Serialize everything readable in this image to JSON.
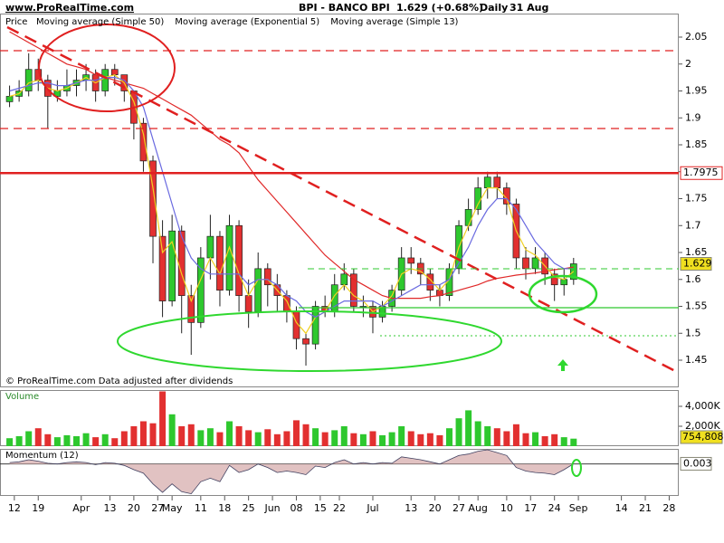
{
  "header": {
    "site": "www.ProRealTime.com",
    "instrument": "BPI - BANCO BPI",
    "quote": "1.629 (+0.68%)",
    "period": "Daily",
    "date": "31 Aug"
  },
  "chart_data": [
    {
      "type": "candlestick",
      "title": "Price",
      "note": "© ProRealTime.com  Data adjusted after dividends",
      "x": [
        -1,
        1,
        3,
        5,
        7,
        9,
        11,
        13,
        15,
        17,
        19,
        21,
        23,
        25,
        27,
        29,
        31,
        33,
        35,
        37,
        39,
        41,
        43,
        45,
        47,
        49,
        51,
        53,
        55,
        57,
        59,
        61,
        63,
        65,
        67,
        69,
        71,
        73,
        75,
        77,
        79,
        81,
        83,
        85,
        87,
        89,
        91,
        93,
        95,
        97,
        99,
        101,
        103,
        105,
        107,
        109,
        111,
        113,
        115,
        117
      ],
      "open": [
        1.93,
        1.94,
        1.95,
        1.99,
        1.97,
        1.94,
        1.95,
        1.96,
        1.97,
        1.98,
        1.95,
        1.99,
        1.98,
        1.95,
        1.89,
        1.82,
        1.68,
        1.56,
        1.69,
        1.57,
        1.52,
        1.64,
        1.68,
        1.58,
        1.7,
        1.57,
        1.54,
        1.62,
        1.59,
        1.57,
        1.54,
        1.49,
        1.48,
        1.55,
        1.54,
        1.59,
        1.61,
        1.55,
        1.55,
        1.53,
        1.55,
        1.58,
        1.64,
        1.63,
        1.61,
        1.58,
        1.57,
        1.62,
        1.7,
        1.73,
        1.77,
        1.79,
        1.77,
        1.74,
        1.64,
        1.62,
        1.64,
        1.61,
        1.59,
        1.6
      ],
      "high": [
        1.96,
        1.97,
        2.02,
        2.01,
        1.98,
        1.97,
        1.99,
        1.99,
        2.0,
        1.99,
        2.0,
        2.0,
        1.98,
        1.95,
        1.9,
        1.83,
        1.71,
        1.72,
        1.7,
        1.59,
        1.66,
        1.72,
        1.69,
        1.72,
        1.71,
        1.6,
        1.65,
        1.63,
        1.61,
        1.58,
        1.55,
        1.5,
        1.56,
        1.57,
        1.61,
        1.63,
        1.62,
        1.57,
        1.56,
        1.56,
        1.59,
        1.66,
        1.66,
        1.64,
        1.62,
        1.59,
        1.63,
        1.71,
        1.75,
        1.79,
        1.8,
        1.8,
        1.78,
        1.75,
        1.66,
        1.66,
        1.65,
        1.62,
        1.62,
        1.64
      ],
      "low": [
        1.92,
        1.93,
        1.94,
        1.95,
        1.88,
        1.93,
        1.94,
        1.94,
        1.95,
        1.93,
        1.94,
        1.96,
        1.93,
        1.86,
        1.8,
        1.63,
        1.53,
        1.55,
        1.5,
        1.46,
        1.51,
        1.6,
        1.55,
        1.57,
        1.54,
        1.51,
        1.53,
        1.55,
        1.54,
        1.52,
        1.47,
        1.44,
        1.47,
        1.53,
        1.53,
        1.58,
        1.54,
        1.53,
        1.5,
        1.52,
        1.54,
        1.57,
        1.61,
        1.59,
        1.56,
        1.55,
        1.56,
        1.61,
        1.69,
        1.72,
        1.75,
        1.75,
        1.72,
        1.62,
        1.6,
        1.61,
        1.59,
        1.56,
        1.57,
        1.59
      ],
      "close": [
        1.94,
        1.95,
        1.99,
        1.97,
        1.94,
        1.95,
        1.96,
        1.97,
        1.98,
        1.95,
        1.99,
        1.98,
        1.95,
        1.89,
        1.82,
        1.68,
        1.56,
        1.69,
        1.57,
        1.52,
        1.64,
        1.68,
        1.58,
        1.7,
        1.57,
        1.54,
        1.62,
        1.59,
        1.57,
        1.54,
        1.49,
        1.48,
        1.55,
        1.54,
        1.59,
        1.61,
        1.55,
        1.55,
        1.53,
        1.55,
        1.58,
        1.64,
        1.63,
        1.61,
        1.58,
        1.57,
        1.62,
        1.7,
        1.73,
        1.77,
        1.79,
        1.77,
        1.74,
        1.64,
        1.62,
        1.64,
        1.61,
        1.59,
        1.6,
        1.629
      ],
      "up_color": "#2ec82e",
      "down_color": "#e23030",
      "series": [
        {
          "name": "Moving average (Simple 50)",
          "color": "#e02828",
          "values": [
            2.06,
            2.05,
            2.04,
            2.03,
            2.02,
            2.01,
            2.0,
            1.995,
            1.99,
            1.98,
            1.975,
            1.97,
            1.965,
            1.96,
            1.955,
            1.945,
            1.935,
            1.925,
            1.915,
            1.905,
            1.89,
            1.875,
            1.86,
            1.85,
            1.835,
            1.81,
            1.785,
            1.765,
            1.745,
            1.725,
            1.705,
            1.685,
            1.665,
            1.645,
            1.63,
            1.615,
            1.6,
            1.59,
            1.58,
            1.57,
            1.565,
            1.565,
            1.565,
            1.565,
            1.568,
            1.57,
            1.575,
            1.58,
            1.585,
            1.59,
            1.597,
            1.602,
            1.605,
            1.608,
            1.61,
            1.612,
            1.615,
            1.618,
            1.62,
            1.623
          ]
        },
        {
          "name": "Moving average (Exponential 5)",
          "color": "#f0d020",
          "values": [
            1.94,
            1.945,
            1.965,
            1.97,
            1.955,
            1.95,
            1.955,
            1.965,
            1.975,
            1.965,
            1.975,
            1.98,
            1.965,
            1.93,
            1.87,
            1.77,
            1.65,
            1.67,
            1.61,
            1.56,
            1.6,
            1.64,
            1.61,
            1.66,
            1.61,
            1.57,
            1.6,
            1.6,
            1.58,
            1.56,
            1.52,
            1.5,
            1.53,
            1.54,
            1.57,
            1.59,
            1.57,
            1.56,
            1.54,
            1.55,
            1.57,
            1.61,
            1.62,
            1.615,
            1.6,
            1.58,
            1.6,
            1.66,
            1.7,
            1.74,
            1.77,
            1.77,
            1.75,
            1.69,
            1.655,
            1.645,
            1.625,
            1.605,
            1.6,
            1.615
          ]
        },
        {
          "name": "Moving average (Simple 13)",
          "color": "#6a6ae0",
          "values": [
            1.95,
            1.955,
            1.96,
            1.965,
            1.965,
            1.96,
            1.96,
            1.965,
            1.97,
            1.97,
            1.975,
            1.975,
            1.97,
            1.95,
            1.92,
            1.86,
            1.8,
            1.74,
            1.68,
            1.64,
            1.62,
            1.61,
            1.61,
            1.61,
            1.61,
            1.59,
            1.6,
            1.6,
            1.59,
            1.57,
            1.56,
            1.54,
            1.53,
            1.54,
            1.55,
            1.56,
            1.56,
            1.56,
            1.56,
            1.55,
            1.56,
            1.57,
            1.58,
            1.59,
            1.59,
            1.59,
            1.6,
            1.63,
            1.66,
            1.7,
            1.73,
            1.75,
            1.75,
            1.73,
            1.7,
            1.67,
            1.65,
            1.63,
            1.62,
            1.62
          ]
        }
      ],
      "hlines": [
        {
          "value": 1.7975,
          "label": "1.7975",
          "color": "#e02020"
        }
      ],
      "xlim": [
        -3,
        139
      ],
      "xticks": [
        {
          "value": 0,
          "label": "12"
        },
        {
          "value": 5,
          "label": "19"
        },
        {
          "value": 14,
          "label": "Apr"
        },
        {
          "value": 20,
          "label": "13"
        },
        {
          "value": 25,
          "label": "20"
        },
        {
          "value": 30,
          "label": "27"
        },
        {
          "value": 33,
          "label": "May"
        },
        {
          "value": 39,
          "label": "11"
        },
        {
          "value": 44,
          "label": "18"
        },
        {
          "value": 49,
          "label": "25"
        },
        {
          "value": 54,
          "label": "Jun"
        },
        {
          "value": 59,
          "label": "08"
        },
        {
          "value": 64,
          "label": "15"
        },
        {
          "value": 68,
          "label": "22"
        },
        {
          "value": 75,
          "label": "Jul"
        },
        {
          "value": 83,
          "label": "13"
        },
        {
          "value": 88,
          "label": "20"
        },
        {
          "value": 93,
          "label": "27"
        },
        {
          "value": 97,
          "label": "Aug"
        },
        {
          "value": 103,
          "label": "10"
        },
        {
          "value": 108,
          "label": "17"
        },
        {
          "value": 113,
          "label": "24"
        },
        {
          "value": 118,
          "label": "Sep"
        },
        {
          "value": 127,
          "label": "14"
        },
        {
          "value": 132,
          "label": "21"
        },
        {
          "value": 137,
          "label": "28"
        }
      ],
      "ylim": [
        1.3996,
        2.0937
      ],
      "yticks": [
        1.45,
        1.5,
        1.55,
        1.6,
        1.65,
        1.7,
        1.75,
        1.8,
        1.85,
        1.9,
        1.95,
        2,
        2.05
      ],
      "grid": false
    },
    {
      "type": "bar",
      "title": "Volume",
      "values": [
        800000,
        1000000,
        1500000,
        1800000,
        1200000,
        900000,
        1100000,
        1000000,
        1300000,
        900000,
        1200000,
        800000,
        1500000,
        2000000,
        2500000,
        2300000,
        5500000,
        3200000,
        2000000,
        2200000,
        1600000,
        1800000,
        1400000,
        2500000,
        2000000,
        1600000,
        1400000,
        1700000,
        1200000,
        1500000,
        2600000,
        2200000,
        1800000,
        1400000,
        1600000,
        2000000,
        1300000,
        1200000,
        1500000,
        1100000,
        1400000,
        2000000,
        1500000,
        1200000,
        1300000,
        1100000,
        1800000,
        2800000,
        3600000,
        2500000,
        2000000,
        1800000,
        1500000,
        2200000,
        1300000,
        1400000,
        1000000,
        1200000,
        900000,
        754808
      ],
      "last_value_label": "754,808",
      "ylim": [
        0,
        5545000
      ],
      "yticks": [
        {
          "value": 2000000,
          "label": "2,000K"
        },
        {
          "value": 4000000,
          "label": "4,000K"
        }
      ]
    },
    {
      "type": "area",
      "title": "Momentum (12)",
      "color": "#d9b3b3",
      "line_color": "#404060",
      "values": [
        0.02,
        0.03,
        0.06,
        0.04,
        0.01,
        0.0,
        0.02,
        0.03,
        0.02,
        -0.01,
        0.02,
        0.01,
        -0.02,
        -0.08,
        -0.13,
        -0.28,
        -0.4,
        -0.28,
        -0.39,
        -0.42,
        -0.25,
        -0.2,
        -0.25,
        -0.02,
        -0.12,
        -0.08,
        0.0,
        -0.05,
        -0.12,
        -0.1,
        -0.12,
        -0.15,
        -0.03,
        -0.05,
        0.02,
        0.06,
        0.0,
        0.02,
        0.0,
        0.02,
        0.01,
        0.1,
        0.08,
        0.06,
        0.03,
        0.0,
        0.06,
        0.12,
        0.14,
        0.18,
        0.2,
        0.16,
        0.12,
        -0.05,
        -0.1,
        -0.12,
        -0.13,
        -0.15,
        -0.08,
        0.003
      ],
      "ylim": [
        -0.45,
        0.2
      ]
    }
  ]
}
